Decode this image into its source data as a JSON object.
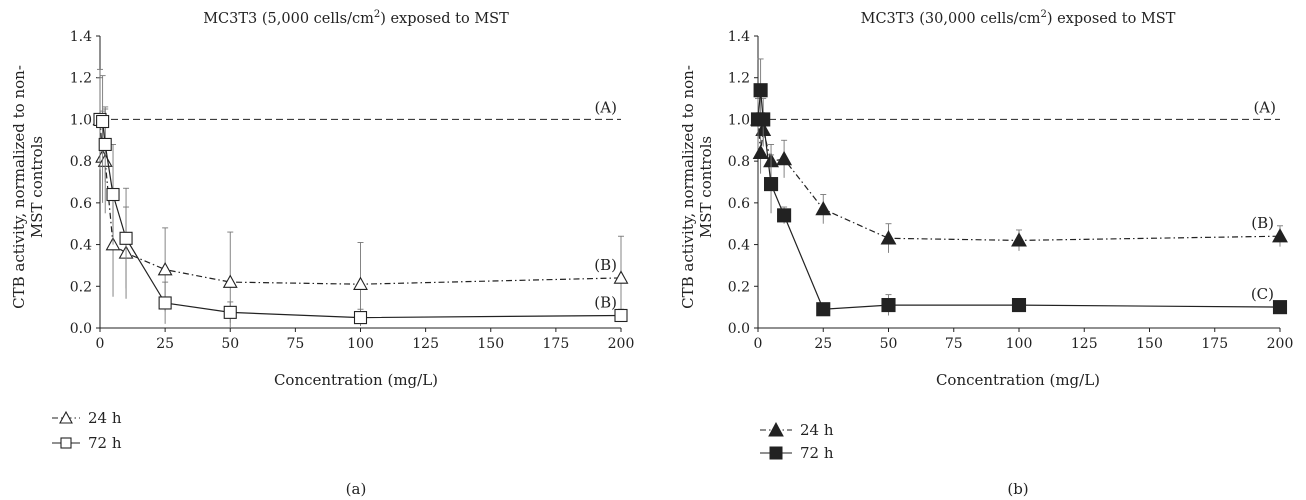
{
  "chart_data": [
    {
      "type": "line",
      "panel": "a",
      "title_main": "MC3T3 (5,000 cells/cm",
      "title_sup": "2",
      "title_end": ") exposed to MST",
      "xlabel": "Concentration (mg/L)",
      "ylabel_line1": "CTB activity, normalized to non-",
      "ylabel_line2": "MST controls",
      "xlim": [
        0,
        200
      ],
      "ylim": [
        0,
        1.4
      ],
      "xticks": [
        "0",
        "25",
        "50",
        "75",
        "100",
        "125",
        "150",
        "175",
        "200"
      ],
      "yticks": [
        "0.0",
        "0.2",
        "0.4",
        "0.6",
        "0.8",
        "1.0",
        "1.2",
        "1.4"
      ],
      "reference_line": {
        "y": 1.0,
        "label": "(A)"
      },
      "series": [
        {
          "name": "24 h",
          "marker": "triangle-open",
          "line": "dashdot",
          "x": [
            0,
            1,
            2,
            5,
            10,
            25,
            50,
            100,
            200
          ],
          "y": [
            1.0,
            0.82,
            0.8,
            0.4,
            0.36,
            0.28,
            0.22,
            0.21,
            0.24
          ],
          "err": [
            0.2,
            0.22,
            0.25,
            0.25,
            0.22,
            0.2,
            0.24,
            0.2,
            0.2
          ],
          "end_label": "(B)"
        },
        {
          "name": "72 h",
          "marker": "square-open",
          "line": "solid",
          "x": [
            0,
            1,
            2,
            5,
            10,
            25,
            50,
            100,
            200
          ],
          "y": [
            1.0,
            0.99,
            0.88,
            0.64,
            0.43,
            0.12,
            0.075,
            0.05,
            0.06
          ],
          "err": [
            0.24,
            0.22,
            0.18,
            0.24,
            0.24,
            0.1,
            0.05,
            0.04,
            0.03
          ],
          "end_label": "(B)"
        }
      ],
      "caption": "(a)"
    },
    {
      "type": "line",
      "panel": "b",
      "title_main": "MC3T3 (30,000 cells/cm",
      "title_sup": "2",
      "title_end": ") exposed to MST",
      "xlabel": "Concentration (mg/L)",
      "ylabel_line1": "CTB activity, normalized to non-",
      "ylabel_line2": "MST controls",
      "xlim": [
        0,
        200
      ],
      "ylim": [
        0,
        1.4
      ],
      "xticks": [
        "0",
        "25",
        "50",
        "75",
        "100",
        "125",
        "150",
        "175",
        "200"
      ],
      "yticks": [
        "0.0",
        "0.2",
        "0.4",
        "0.6",
        "0.8",
        "1.0",
        "1.2",
        "1.4"
      ],
      "reference_line": {
        "y": 1.0,
        "label": "(A)"
      },
      "series": [
        {
          "name": "24 h",
          "marker": "triangle-filled",
          "line": "dashdot",
          "x": [
            0,
            1,
            2,
            5,
            10,
            25,
            50,
            100,
            200
          ],
          "y": [
            1.0,
            0.84,
            0.95,
            0.8,
            0.81,
            0.57,
            0.43,
            0.42,
            0.44
          ],
          "err": [
            0.15,
            0.1,
            0.08,
            0.08,
            0.09,
            0.07,
            0.07,
            0.05,
            0.05
          ],
          "end_label": "(B)"
        },
        {
          "name": "72 h",
          "marker": "square-filled",
          "line": "solid",
          "x": [
            0,
            1,
            2,
            5,
            10,
            25,
            50,
            100,
            200
          ],
          "y": [
            1.0,
            1.14,
            1.0,
            0.69,
            0.54,
            0.09,
            0.11,
            0.11,
            0.1
          ],
          "err": [
            0.1,
            0.15,
            0.1,
            0.14,
            0.04,
            0.02,
            0.05,
            0.03,
            0.02
          ],
          "end_label": "(C)"
        }
      ],
      "caption": "(b)"
    }
  ]
}
